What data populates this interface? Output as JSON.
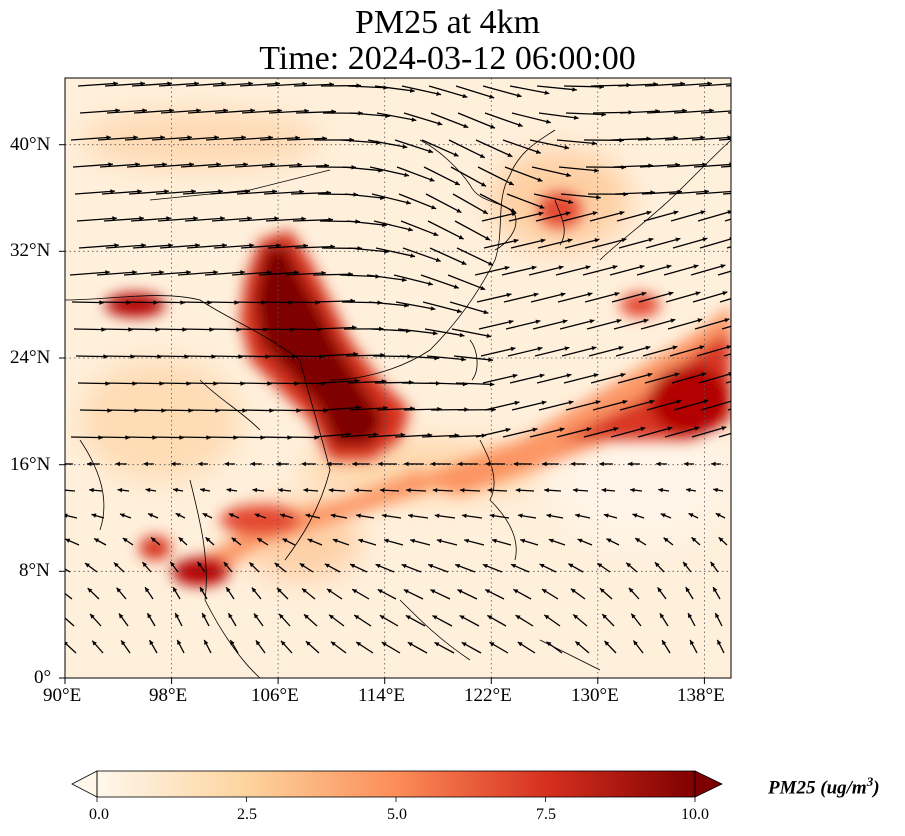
{
  "title": {
    "line1": "PM25 at 4km",
    "line2": "Time: 2024-03-12 06:00:00"
  },
  "map": {
    "extent": {
      "lon": [
        90,
        140
      ],
      "lat": [
        0,
        45
      ]
    },
    "lon_ticks": [
      "90°E",
      "98°E",
      "106°E",
      "114°E",
      "122°E",
      "130°E",
      "138°E"
    ],
    "lat_ticks": [
      "0°",
      "8°N",
      "16°N",
      "24°N",
      "32°N",
      "40°N"
    ],
    "gridlines": "dotted",
    "field_name": "PM25",
    "high_concentration_regions": [
      "South China / northern Vietnam plume",
      "Band extending northeast over Philippine Sea toward Japan",
      "Myanmar / Thailand local maxima",
      "Korea / Japan local maxima"
    ],
    "vectors": "wind arrows (black)"
  },
  "colorbar": {
    "colormap": "OrRd",
    "min": 0.0,
    "max": 10.0,
    "ticks": [
      "0.0",
      "2.5",
      "5.0",
      "7.5",
      "10.0"
    ],
    "label": "PM25 (ug/m",
    "label_sup": "3",
    "label_end": ")",
    "extend": "both",
    "colors": [
      "#fff7ec",
      "#fdd49e",
      "#fc8d59",
      "#d7301f",
      "#7f0000"
    ]
  }
}
